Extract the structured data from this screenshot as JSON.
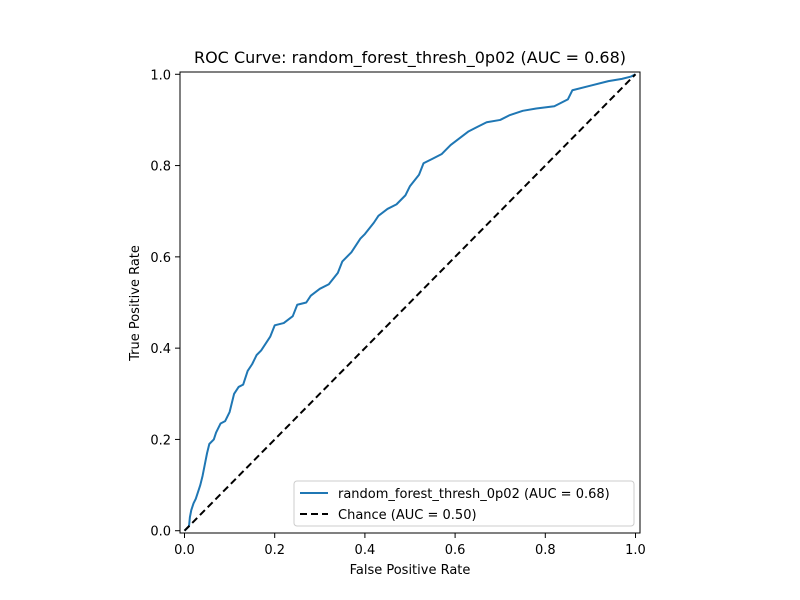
{
  "chart_data": {
    "type": "line",
    "title": "ROC Curve: random_forest_thresh_0p02 (AUC = 0.68)",
    "xlabel": "False Positive Rate",
    "ylabel": "True Positive Rate",
    "xlim": [
      -0.01,
      1.01
    ],
    "ylim": [
      -0.005,
      1.005
    ],
    "xticks": [
      "0.0",
      "0.2",
      "0.4",
      "0.6",
      "0.8",
      "1.0"
    ],
    "yticks": [
      "0.0",
      "0.2",
      "0.4",
      "0.6",
      "0.8",
      "1.0"
    ],
    "grid": false,
    "legend_position": "lower-right",
    "series": [
      {
        "name": "random_forest_thresh_0p02 (AUC = 0.68)",
        "color": "#1f77b4",
        "style": "solid",
        "points": [
          [
            0.0,
            0.0
          ],
          [
            0.005,
            0.005
          ],
          [
            0.01,
            0.01
          ],
          [
            0.012,
            0.03
          ],
          [
            0.015,
            0.045
          ],
          [
            0.02,
            0.06
          ],
          [
            0.025,
            0.07
          ],
          [
            0.03,
            0.085
          ],
          [
            0.035,
            0.1
          ],
          [
            0.04,
            0.12
          ],
          [
            0.045,
            0.145
          ],
          [
            0.05,
            0.17
          ],
          [
            0.055,
            0.19
          ],
          [
            0.065,
            0.2
          ],
          [
            0.07,
            0.215
          ],
          [
            0.08,
            0.235
          ],
          [
            0.09,
            0.24
          ],
          [
            0.1,
            0.26
          ],
          [
            0.105,
            0.28
          ],
          [
            0.11,
            0.3
          ],
          [
            0.12,
            0.315
          ],
          [
            0.13,
            0.32
          ],
          [
            0.14,
            0.35
          ],
          [
            0.15,
            0.365
          ],
          [
            0.16,
            0.385
          ],
          [
            0.17,
            0.395
          ],
          [
            0.18,
            0.41
          ],
          [
            0.19,
            0.425
          ],
          [
            0.2,
            0.45
          ],
          [
            0.22,
            0.455
          ],
          [
            0.24,
            0.47
          ],
          [
            0.25,
            0.495
          ],
          [
            0.27,
            0.5
          ],
          [
            0.28,
            0.515
          ],
          [
            0.3,
            0.53
          ],
          [
            0.32,
            0.54
          ],
          [
            0.34,
            0.565
          ],
          [
            0.35,
            0.59
          ],
          [
            0.37,
            0.61
          ],
          [
            0.38,
            0.625
          ],
          [
            0.39,
            0.64
          ],
          [
            0.4,
            0.65
          ],
          [
            0.42,
            0.675
          ],
          [
            0.43,
            0.69
          ],
          [
            0.45,
            0.705
          ],
          [
            0.47,
            0.715
          ],
          [
            0.49,
            0.735
          ],
          [
            0.5,
            0.755
          ],
          [
            0.52,
            0.78
          ],
          [
            0.53,
            0.805
          ],
          [
            0.55,
            0.815
          ],
          [
            0.57,
            0.825
          ],
          [
            0.59,
            0.845
          ],
          [
            0.61,
            0.86
          ],
          [
            0.63,
            0.875
          ],
          [
            0.65,
            0.885
          ],
          [
            0.67,
            0.895
          ],
          [
            0.7,
            0.9
          ],
          [
            0.72,
            0.91
          ],
          [
            0.75,
            0.92
          ],
          [
            0.78,
            0.925
          ],
          [
            0.82,
            0.93
          ],
          [
            0.85,
            0.945
          ],
          [
            0.86,
            0.965
          ],
          [
            0.9,
            0.975
          ],
          [
            0.94,
            0.985
          ],
          [
            0.97,
            0.99
          ],
          [
            0.99,
            0.995
          ],
          [
            1.0,
            1.0
          ]
        ]
      },
      {
        "name": "Chance (AUC = 0.50)",
        "color": "#000000",
        "style": "dashed",
        "points": [
          [
            0.0,
            0.0
          ],
          [
            1.0,
            1.0
          ]
        ]
      }
    ]
  }
}
